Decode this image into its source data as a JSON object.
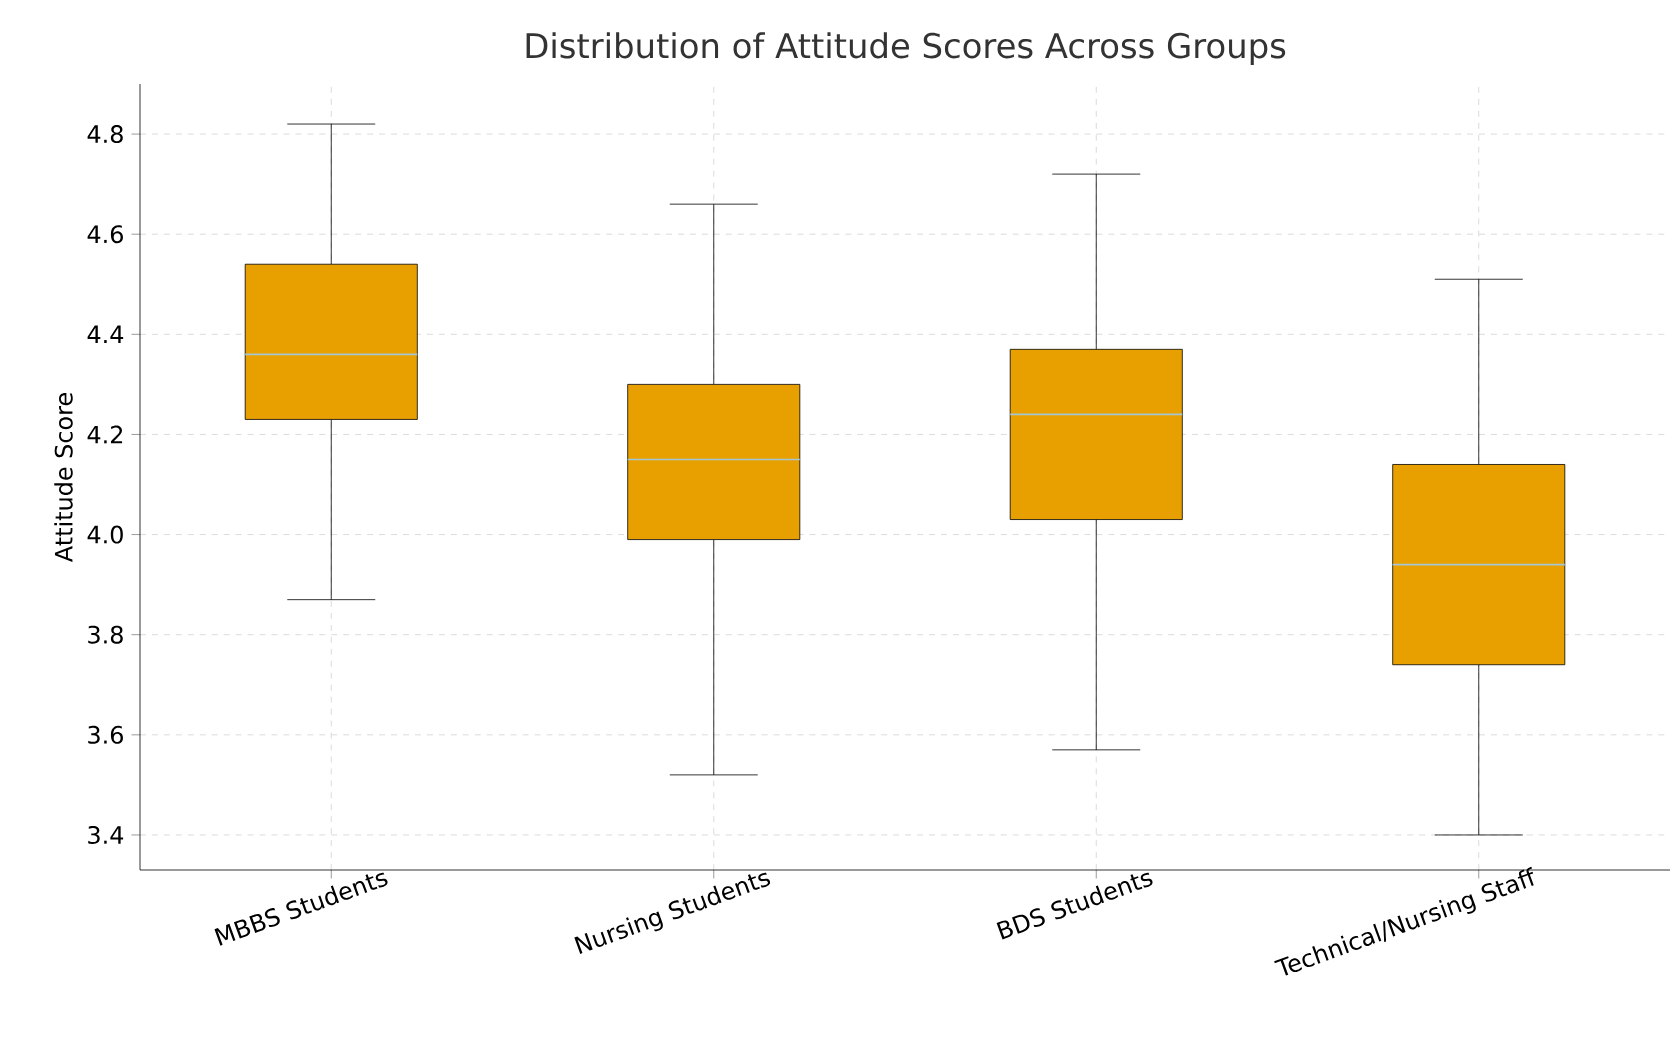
{
  "chart_data": {
    "type": "box",
    "title": "Distribution of Attitude Scores Across Groups",
    "ylabel": "Attitude Score",
    "categories": [
      "MBBS Students",
      "Nursing Students",
      "BDS Students",
      "Technical/Nursing Staff"
    ],
    "color": "#e8a000",
    "boxes": [
      {
        "low": 3.87,
        "q1": 4.23,
        "median": 4.36,
        "q3": 4.54,
        "high": 4.82
      },
      {
        "low": 3.52,
        "q1": 3.99,
        "median": 4.15,
        "q3": 4.3,
        "high": 4.66
      },
      {
        "low": 3.57,
        "q1": 4.03,
        "median": 4.24,
        "q3": 4.37,
        "high": 4.72
      },
      {
        "low": 3.4,
        "q1": 3.74,
        "median": 3.94,
        "q3": 4.14,
        "high": 4.51
      }
    ],
    "ylim": [
      3.33,
      4.9
    ],
    "yticks": [
      3.4,
      3.6,
      3.8,
      {
        "value": 4,
        "label": "4.0"
      },
      4.2,
      4.4,
      4.6,
      4.8
    ],
    "grid": true
  }
}
